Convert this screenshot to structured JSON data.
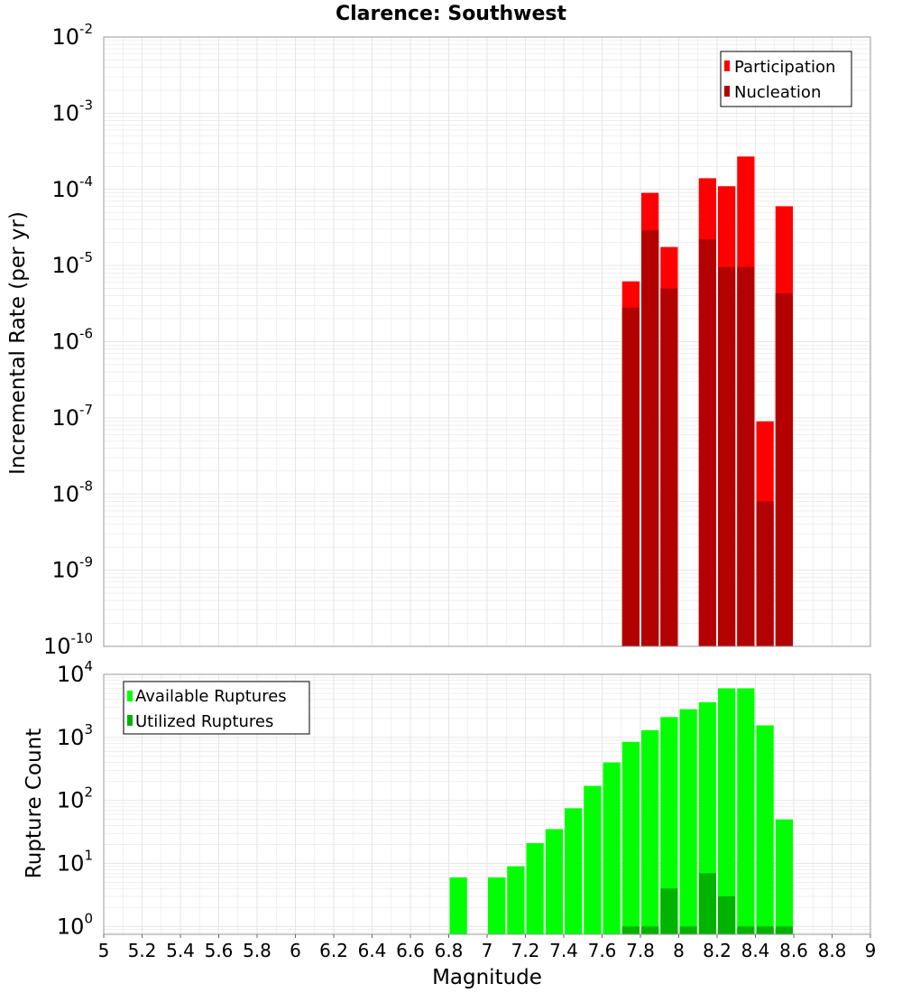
{
  "title": "Clarence: Southwest",
  "colors": {
    "participation": "#ff0000",
    "nucleation": "#b30000",
    "available": "#00ff00",
    "utilized": "#00b300",
    "grid": "#e6e6e6",
    "frame": "#999999"
  },
  "chart_data": [
    {
      "type": "bar",
      "scale": "log",
      "xlabel": "Magnitude",
      "ylabel": "Incremental Rate (per yr)",
      "xlim": [
        5,
        9
      ],
      "ylim": [
        1e-10,
        0.01
      ],
      "grid": true,
      "legend_position": "top-right",
      "bin_width": 0.1,
      "yticks": [
        {
          "base": "10",
          "exp": "-2"
        },
        {
          "base": "10",
          "exp": "-3"
        },
        {
          "base": "10",
          "exp": "-4"
        },
        {
          "base": "10",
          "exp": "-5"
        },
        {
          "base": "10",
          "exp": "-6"
        },
        {
          "base": "10",
          "exp": "-7"
        },
        {
          "base": "10",
          "exp": "-8"
        },
        {
          "base": "10",
          "exp": "-9"
        },
        {
          "base": "10",
          "exp": "-10"
        }
      ],
      "x": [
        7.75,
        7.85,
        7.95,
        8.15,
        8.25,
        8.35,
        8.45,
        8.55
      ],
      "series": [
        {
          "name": "Participation",
          "values": [
            6.2e-06,
            9e-05,
            1.75e-05,
            0.00014,
            0.00011,
            0.00027,
            9e-08,
            6e-05
          ]
        },
        {
          "name": "Nucleation",
          "values": [
            2.8e-06,
            2.9e-05,
            5e-06,
            2.2e-05,
            9.5e-06,
            9.5e-06,
            8e-09,
            4.3e-06
          ]
        }
      ]
    },
    {
      "type": "bar",
      "scale": "log",
      "xlabel": "Magnitude",
      "ylabel": "Rupture Count",
      "xlim": [
        5,
        9
      ],
      "ylim": [
        0.75,
        10000
      ],
      "grid": true,
      "legend_position": "top-left",
      "bin_width": 0.1,
      "yticks": [
        {
          "base": "10",
          "exp": "4"
        },
        {
          "base": "10",
          "exp": "3"
        },
        {
          "base": "10",
          "exp": "2"
        },
        {
          "base": "10",
          "exp": "1"
        },
        {
          "base": "10",
          "exp": "0"
        }
      ],
      "xticks": [
        "5",
        "5.2",
        "5.4",
        "5.6",
        "5.8",
        "6",
        "6.2",
        "6.4",
        "6.6",
        "6.8",
        "7",
        "7.2",
        "7.4",
        "7.6",
        "7.8",
        "8",
        "8.2",
        "8.4",
        "8.6",
        "8.8",
        "9"
      ],
      "series": [
        {
          "name": "Available Ruptures",
          "x": [
            6.85,
            7.05,
            7.15,
            7.25,
            7.35,
            7.45,
            7.55,
            7.65,
            7.75,
            7.85,
            7.95,
            8.05,
            8.15,
            8.25,
            8.35,
            8.45,
            8.55
          ],
          "values": [
            6,
            6,
            9,
            21,
            35,
            75,
            170,
            400,
            850,
            1300,
            2100,
            2800,
            3600,
            6000,
            6000,
            1550,
            50
          ]
        },
        {
          "name": "Utilized Ruptures",
          "x": [
            7.75,
            7.85,
            7.95,
            8.05,
            8.15,
            8.25,
            8.35,
            8.45,
            8.55
          ],
          "values": [
            1,
            1,
            4,
            1,
            7,
            3,
            1,
            1,
            1
          ]
        }
      ]
    }
  ]
}
